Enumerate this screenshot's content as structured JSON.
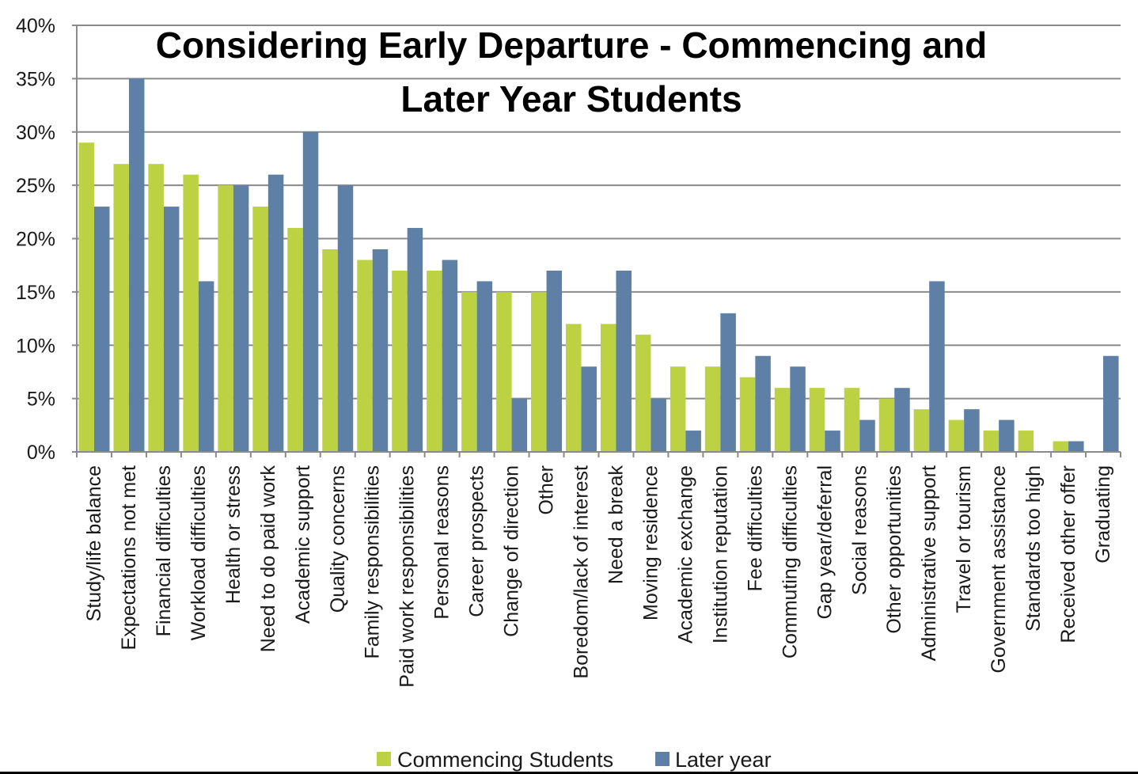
{
  "chart_data": {
    "type": "bar",
    "title_lines": [
      "Considering Early Departure - Commencing and",
      "Later Year Students"
    ],
    "xlabel": "",
    "ylabel": "",
    "ylim": [
      0,
      40
    ],
    "y_ticks": [
      "0%",
      "5%",
      "10%",
      "15%",
      "20%",
      "25%",
      "30%",
      "35%",
      "40%"
    ],
    "y_tick_values": [
      0,
      5,
      10,
      15,
      20,
      25,
      30,
      35,
      40
    ],
    "grid": true,
    "legend_position": "bottom",
    "categories": [
      "Study/life balance",
      "Expectations not met",
      "Financial difficulties",
      "Workload difficulties",
      "Health or stress",
      "Need to do paid work",
      "Academic support",
      "Quality concerns",
      "Family responsibilities",
      "Paid work responsibilities",
      "Personal reasons",
      "Career prospects",
      "Change of direction",
      "Other",
      "Boredom/lack of interest",
      "Need a break",
      "Moving residence",
      "Academic exchange",
      "Institution reputation",
      "Fee difficulties",
      "Commuting difficulties",
      "Gap year/deferral",
      "Social reasons",
      "Other opportunities",
      "Administrative support",
      "Travel or tourism",
      "Government assistance",
      "Standards too high",
      "Received other offer",
      "Graduating"
    ],
    "series": [
      {
        "name": "Commencing Students",
        "color": "#bdd242",
        "values": [
          29,
          27,
          27,
          26,
          25,
          23,
          21,
          19,
          18,
          17,
          17,
          15,
          15,
          15,
          12,
          12,
          11,
          8,
          8,
          7,
          6,
          6,
          6,
          5,
          4,
          3,
          2,
          2,
          1,
          0
        ]
      },
      {
        "name": "Later year",
        "color": "#5e80a6",
        "values": [
          23,
          35,
          23,
          16,
          25,
          26,
          30,
          25,
          19,
          21,
          18,
          16,
          5,
          17,
          8,
          17,
          5,
          2,
          13,
          9,
          8,
          2,
          3,
          6,
          16,
          4,
          3,
          0,
          1,
          9
        ]
      }
    ]
  }
}
